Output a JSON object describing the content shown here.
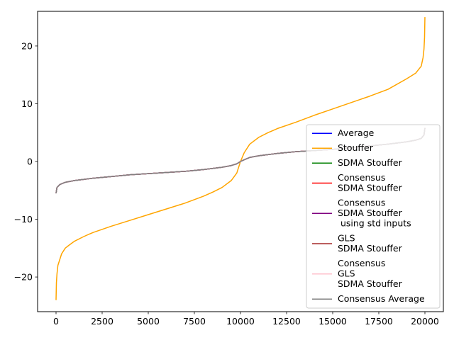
{
  "chart_data": {
    "type": "line",
    "title": "",
    "xlabel": "",
    "ylabel": "",
    "xlim": [
      -1000,
      21000
    ],
    "ylim": [
      -26,
      26
    ],
    "x_ticks": [
      0,
      2500,
      5000,
      7500,
      10000,
      12500,
      15000,
      17500,
      20000
    ],
    "x_tick_labels": [
      "0",
      "2500",
      "5000",
      "7500",
      "10000",
      "12500",
      "15000",
      "17500",
      "20000"
    ],
    "y_ticks": [
      -20,
      -10,
      0,
      10,
      20
    ],
    "y_tick_labels": [
      "−20",
      "−10",
      "0",
      "10",
      "20"
    ],
    "grid": false,
    "legend_position": "lower-right",
    "series": [
      {
        "name": "Average",
        "color": "#0000ff",
        "x": [
          0,
          50,
          200,
          500,
          1000,
          2000,
          3000,
          4000,
          5000,
          6000,
          7000,
          8000,
          9000,
          9500,
          9800,
          10000,
          10200,
          10500,
          11000,
          12000,
          13000,
          14000,
          15000,
          16000,
          17000,
          18000,
          19000,
          19500,
          19800,
          19950,
          20000
        ],
        "y": [
          -5.5,
          -4.5,
          -4.0,
          -3.6,
          -3.3,
          -2.9,
          -2.6,
          -2.3,
          -2.1,
          -1.9,
          -1.7,
          -1.4,
          -1.0,
          -0.7,
          -0.4,
          0.0,
          0.3,
          0.7,
          1.0,
          1.4,
          1.7,
          1.9,
          2.1,
          2.4,
          2.7,
          3.0,
          3.4,
          3.7,
          4.0,
          4.6,
          5.8
        ]
      },
      {
        "name": "Stouffer",
        "color": "#ffa500",
        "x": [
          0,
          20,
          50,
          100,
          200,
          300,
          500,
          700,
          1000,
          1500,
          2000,
          3000,
          4000,
          5000,
          6000,
          7000,
          8000,
          8500,
          9000,
          9500,
          9800,
          10000,
          10200,
          10500,
          11000,
          11500,
          12000,
          13000,
          14000,
          15000,
          16000,
          17000,
          18000,
          19000,
          19500,
          19800,
          19900,
          19950,
          19980,
          20000
        ],
        "y": [
          -24.0,
          -21.0,
          -19.5,
          -18.0,
          -17.0,
          -16.0,
          -15.0,
          -14.5,
          -13.8,
          -13.0,
          -12.3,
          -11.2,
          -10.2,
          -9.2,
          -8.2,
          -7.2,
          -6.0,
          -5.3,
          -4.5,
          -3.3,
          -2.0,
          0.0,
          1.5,
          3.0,
          4.2,
          5.0,
          5.7,
          6.8,
          8.0,
          9.1,
          10.2,
          11.3,
          12.5,
          14.3,
          15.3,
          16.5,
          18.0,
          19.5,
          21.5,
          25.0
        ]
      },
      {
        "name": "SDMA Stouffer",
        "color": "#008000",
        "x": [
          0,
          50,
          200,
          500,
          1000,
          2000,
          3000,
          4000,
          5000,
          6000,
          7000,
          8000,
          9000,
          9500,
          9800,
          10000,
          10200,
          10500,
          11000,
          12000,
          13000,
          14000,
          15000,
          16000,
          17000,
          18000,
          19000,
          19500,
          19800,
          19950,
          20000
        ],
        "y": [
          -5.5,
          -4.5,
          -4.0,
          -3.6,
          -3.3,
          -2.9,
          -2.6,
          -2.3,
          -2.1,
          -1.9,
          -1.7,
          -1.4,
          -1.0,
          -0.7,
          -0.4,
          0.0,
          0.3,
          0.7,
          1.0,
          1.4,
          1.7,
          1.9,
          2.1,
          2.4,
          2.7,
          3.0,
          3.4,
          3.7,
          4.0,
          4.6,
          5.8
        ]
      },
      {
        "name": "Consensus\nSDMA Stouffer",
        "color": "#ff0000",
        "x": [
          0,
          50,
          200,
          500,
          1000,
          2000,
          3000,
          4000,
          5000,
          6000,
          7000,
          8000,
          9000,
          9500,
          9800,
          10000,
          10200,
          10500,
          11000,
          12000,
          13000,
          14000,
          15000,
          16000,
          17000,
          18000,
          19000,
          19500,
          19800,
          19950,
          20000
        ],
        "y": [
          -5.5,
          -4.5,
          -4.0,
          -3.6,
          -3.3,
          -2.9,
          -2.6,
          -2.3,
          -2.1,
          -1.9,
          -1.7,
          -1.4,
          -1.0,
          -0.7,
          -0.4,
          0.0,
          0.3,
          0.7,
          1.0,
          1.4,
          1.7,
          1.9,
          2.1,
          2.4,
          2.7,
          3.0,
          3.4,
          3.7,
          4.0,
          4.6,
          5.8
        ]
      },
      {
        "name": "Consensus\nSDMA Stouffer\n using std inputs",
        "color": "#800080",
        "x": [
          0,
          50,
          200,
          500,
          1000,
          2000,
          3000,
          4000,
          5000,
          6000,
          7000,
          8000,
          9000,
          9500,
          9800,
          10000,
          10200,
          10500,
          11000,
          12000,
          13000,
          14000,
          15000,
          16000,
          17000,
          18000,
          19000,
          19500,
          19800,
          19950,
          20000
        ],
        "y": [
          -5.5,
          -4.5,
          -4.0,
          -3.6,
          -3.3,
          -2.9,
          -2.6,
          -2.3,
          -2.1,
          -1.9,
          -1.7,
          -1.4,
          -1.0,
          -0.7,
          -0.4,
          0.0,
          0.3,
          0.7,
          1.0,
          1.4,
          1.7,
          1.9,
          2.1,
          2.4,
          2.7,
          3.0,
          3.4,
          3.7,
          4.0,
          4.6,
          5.8
        ]
      },
      {
        "name": "GLS\nSDMA Stouffer",
        "color": "#a52a2a",
        "x": [
          0,
          50,
          200,
          500,
          1000,
          2000,
          3000,
          4000,
          5000,
          6000,
          7000,
          8000,
          9000,
          9500,
          9800,
          10000,
          10200,
          10500,
          11000,
          12000,
          13000,
          14000,
          15000,
          16000,
          17000,
          18000,
          19000,
          19500,
          19800,
          19950,
          20000
        ],
        "y": [
          -5.5,
          -4.5,
          -4.0,
          -3.6,
          -3.3,
          -2.9,
          -2.6,
          -2.3,
          -2.1,
          -1.9,
          -1.7,
          -1.4,
          -1.0,
          -0.7,
          -0.4,
          0.0,
          0.3,
          0.7,
          1.0,
          1.4,
          1.7,
          1.9,
          2.1,
          2.4,
          2.7,
          3.0,
          3.4,
          3.7,
          4.0,
          4.6,
          5.8
        ]
      },
      {
        "name": "Consensus\nGLS\nSDMA Stouffer",
        "color": "#ffc0cb",
        "x": [
          0,
          50,
          200,
          500,
          1000,
          2000,
          3000,
          4000,
          5000,
          6000,
          7000,
          8000,
          9000,
          9500,
          9800,
          10000,
          10200,
          10500,
          11000,
          12000,
          13000,
          14000,
          15000,
          16000,
          17000,
          18000,
          19000,
          19500,
          19800,
          19950,
          20000
        ],
        "y": [
          -5.5,
          -4.5,
          -4.0,
          -3.6,
          -3.3,
          -2.9,
          -2.6,
          -2.3,
          -2.1,
          -1.9,
          -1.7,
          -1.4,
          -1.0,
          -0.7,
          -0.4,
          0.0,
          0.3,
          0.7,
          1.0,
          1.4,
          1.7,
          1.9,
          2.1,
          2.4,
          2.7,
          3.0,
          3.4,
          3.7,
          4.0,
          4.6,
          5.8
        ]
      },
      {
        "name": "Consensus Average",
        "color": "#808080",
        "x": [
          0,
          50,
          200,
          500,
          1000,
          2000,
          3000,
          4000,
          5000,
          6000,
          7000,
          8000,
          9000,
          9500,
          9800,
          10000,
          10200,
          10500,
          11000,
          12000,
          13000,
          14000,
          15000,
          16000,
          17000,
          18000,
          19000,
          19500,
          19800,
          19950,
          20000
        ],
        "y": [
          -5.5,
          -4.5,
          -4.0,
          -3.6,
          -3.3,
          -2.9,
          -2.6,
          -2.3,
          -2.1,
          -1.9,
          -1.7,
          -1.4,
          -1.0,
          -0.7,
          -0.4,
          0.0,
          0.3,
          0.7,
          1.0,
          1.4,
          1.7,
          1.9,
          2.1,
          2.4,
          2.7,
          3.0,
          3.4,
          3.7,
          4.0,
          4.6,
          5.8
        ]
      }
    ]
  }
}
